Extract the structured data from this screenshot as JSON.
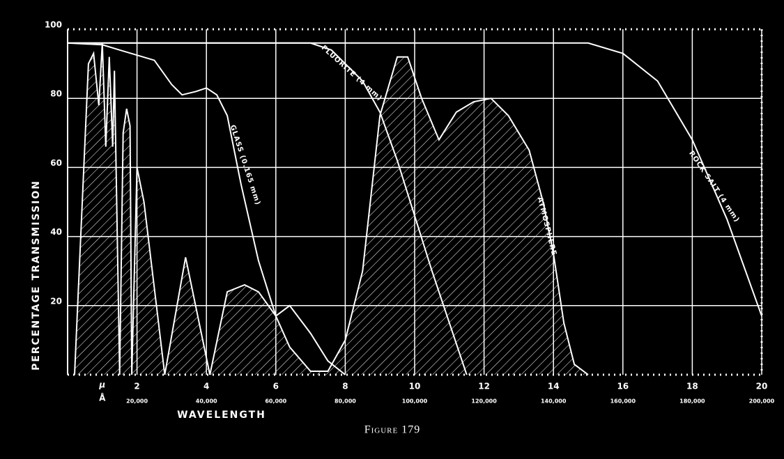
{
  "chart_data": {
    "type": "line",
    "title": "Figure 179",
    "y_label": "PERCENTAGE TRANSMISSION",
    "x_label": "WAVELENGTH",
    "xlim": [
      0,
      20
    ],
    "ylim": [
      0,
      100
    ],
    "xticks": [
      2,
      4,
      6,
      8,
      10,
      12,
      14,
      16,
      18,
      20
    ],
    "xticks_angstrom": [
      {
        "value": 2,
        "label": "20,000"
      },
      {
        "value": 4,
        "label": "40,000"
      },
      {
        "value": 6,
        "label": "60,000"
      },
      {
        "value": 8,
        "label": "80,000"
      },
      {
        "value": 10,
        "label": "100,000"
      },
      {
        "value": 12,
        "label": "120,000"
      },
      {
        "value": 14,
        "label": "140,000"
      },
      {
        "value": 16,
        "label": "160,000"
      },
      {
        "value": 18,
        "label": "180,000"
      },
      {
        "value": 20,
        "label": "200,000"
      }
    ],
    "x_unit_marker": {
      "value": 1,
      "micron": "μ",
      "angstrom": "Å"
    },
    "yticks": [
      20,
      40,
      60,
      80,
      100
    ],
    "grid": true,
    "series": [
      {
        "name": "GLASS (0.165 mm)",
        "color": "#ffffff",
        "fill": "none",
        "x": [
          0,
          1,
          1.5,
          2,
          2.5,
          3,
          3.3,
          3.7,
          4,
          4.3,
          4.6,
          5,
          5.5,
          6,
          6.4,
          7,
          7.5,
          8
        ],
        "values": [
          96,
          95.5,
          94,
          92.5,
          91,
          84,
          81,
          82,
          83,
          81,
          75,
          55,
          33,
          17,
          20,
          12,
          4,
          0
        ]
      },
      {
        "name": "FLUORITE (4 mm)",
        "color": "#ffffff",
        "fill": "none",
        "x": [
          0,
          7,
          7.6,
          8,
          8.5,
          9,
          9.5,
          10,
          10.5,
          11,
          11.5
        ],
        "values": [
          96,
          96,
          94,
          90,
          85,
          76,
          62,
          46,
          30,
          15,
          0
        ]
      },
      {
        "name": "ROCK SALT (4 mm)",
        "color": "#ffffff",
        "fill": "none",
        "x": [
          0,
          15,
          16,
          17,
          18,
          19,
          20
        ],
        "values": [
          96,
          96,
          93,
          85,
          68,
          45,
          17
        ]
      },
      {
        "name": "ATMOSPHERE",
        "color": "#ffffff",
        "fill": "hatch",
        "x": [
          0.2,
          0.6,
          0.75,
          0.9,
          1.0,
          1.1,
          1.2,
          1.3,
          1.35,
          1.5,
          1.6,
          1.7,
          1.8,
          1.85,
          2.0,
          2.2,
          2.8,
          3.4,
          4.1,
          4.6,
          5.1,
          5.5,
          6.0,
          6.4,
          7.0,
          7.5,
          8,
          8.5,
          9,
          9.5,
          9.8,
          10.2,
          10.7,
          11.2,
          11.7,
          12.2,
          12.7,
          13.3,
          13.7,
          14,
          14.3,
          14.6,
          15
        ],
        "values": [
          0,
          90,
          93,
          78,
          96,
          66,
          92,
          66,
          88,
          0,
          70,
          77,
          72,
          0,
          60,
          50,
          0,
          34,
          0,
          24,
          26,
          24,
          17,
          8,
          1,
          1,
          10,
          30,
          75,
          92,
          92,
          80,
          68,
          76,
          79,
          80,
          75,
          65,
          50,
          35,
          15,
          3,
          0
        ]
      }
    ]
  }
}
